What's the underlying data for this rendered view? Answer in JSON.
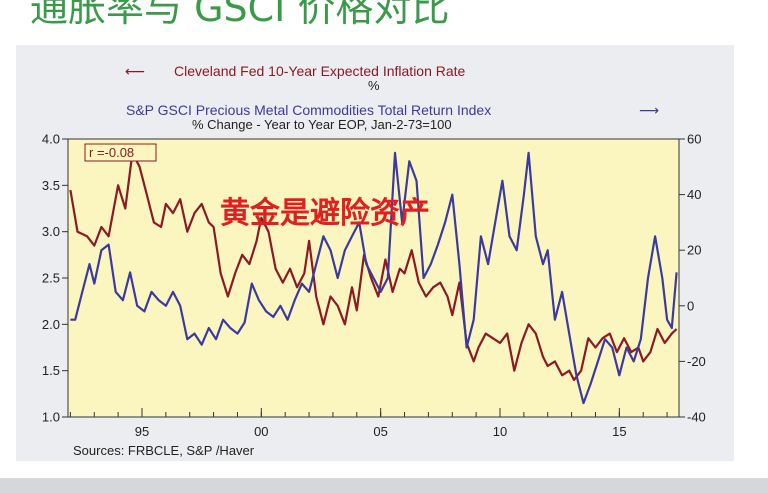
{
  "title": "通胀率与 GSCI 价格对比",
  "colors": {
    "inflation": "#8b1a24",
    "gsci": "#3c3aa0",
    "plot_bg": "#fbf6c0",
    "panel_bg": "#ecedf0",
    "title": "#3a9a4a",
    "annotation": "#e02020"
  },
  "chart_data": {
    "type": "line",
    "legend": {
      "inflation_label": "Cleveland Fed 10-Year Expected Inflation Rate",
      "inflation_unit": "%",
      "inflation_arrow": "⟵",
      "gsci_label": "S&P GSCI Precious Metal Commodities Total Return Index",
      "gsci_sub": "% Change - Year to Year     EOP, Jan-2-73=100",
      "gsci_arrow": "⟶"
    },
    "correlation": "r =-0.08",
    "annotation": "黄金是避险资产",
    "sources": "Sources:  FRBCLE, S&P /Haver",
    "x_ticks": [
      {
        "value": 1995,
        "label": "95"
      },
      {
        "value": 2000,
        "label": "00"
      },
      {
        "value": 2005,
        "label": "05"
      },
      {
        "value": 2010,
        "label": "10"
      },
      {
        "value": 2015,
        "label": "15"
      }
    ],
    "xlim": [
      1991.9,
      2017.5
    ],
    "left_axis": {
      "range": [
        1.0,
        4.0
      ],
      "ticks": [
        "1.0",
        "1.5",
        "2.0",
        "2.5",
        "3.0",
        "3.5",
        "4.0"
      ]
    },
    "right_axis": {
      "range": [
        -40,
        60
      ],
      "ticks": [
        "-40",
        "-20",
        "0",
        "20",
        "40",
        "60"
      ]
    },
    "series": [
      {
        "name": "Cleveland Fed 10-Year Expected Inflation Rate",
        "axis": "left",
        "points": [
          [
            1992.0,
            3.45
          ],
          [
            1992.3,
            3.0
          ],
          [
            1992.7,
            2.95
          ],
          [
            1993.0,
            2.85
          ],
          [
            1993.3,
            3.05
          ],
          [
            1993.6,
            2.95
          ],
          [
            1994.0,
            3.5
          ],
          [
            1994.3,
            3.25
          ],
          [
            1994.6,
            3.85
          ],
          [
            1994.9,
            3.7
          ],
          [
            1995.2,
            3.4
          ],
          [
            1995.5,
            3.1
          ],
          [
            1995.8,
            3.05
          ],
          [
            1996.0,
            3.3
          ],
          [
            1996.3,
            3.2
          ],
          [
            1996.6,
            3.35
          ],
          [
            1996.9,
            3.0
          ],
          [
            1997.2,
            3.2
          ],
          [
            1997.5,
            3.3
          ],
          [
            1997.8,
            3.1
          ],
          [
            1998.0,
            3.05
          ],
          [
            1998.3,
            2.55
          ],
          [
            1998.6,
            2.3
          ],
          [
            1998.9,
            2.55
          ],
          [
            1999.2,
            2.75
          ],
          [
            1999.5,
            2.65
          ],
          [
            1999.8,
            2.9
          ],
          [
            2000.0,
            3.15
          ],
          [
            2000.3,
            3.0
          ],
          [
            2000.6,
            2.6
          ],
          [
            2000.9,
            2.45
          ],
          [
            2001.2,
            2.6
          ],
          [
            2001.5,
            2.4
          ],
          [
            2001.8,
            2.55
          ],
          [
            2002.0,
            2.9
          ],
          [
            2002.3,
            2.3
          ],
          [
            2002.6,
            2.0
          ],
          [
            2002.9,
            2.3
          ],
          [
            2003.2,
            2.2
          ],
          [
            2003.5,
            2.0
          ],
          [
            2003.8,
            2.4
          ],
          [
            2004.0,
            2.15
          ],
          [
            2004.3,
            2.75
          ],
          [
            2004.6,
            2.5
          ],
          [
            2004.9,
            2.3
          ],
          [
            2005.2,
            2.7
          ],
          [
            2005.5,
            2.35
          ],
          [
            2005.8,
            2.6
          ],
          [
            2006.0,
            2.55
          ],
          [
            2006.3,
            2.8
          ],
          [
            2006.6,
            2.45
          ],
          [
            2006.9,
            2.3
          ],
          [
            2007.2,
            2.4
          ],
          [
            2007.5,
            2.45
          ],
          [
            2007.8,
            2.3
          ],
          [
            2008.0,
            2.1
          ],
          [
            2008.3,
            2.45
          ],
          [
            2008.6,
            1.8
          ],
          [
            2008.9,
            1.6
          ],
          [
            2009.1,
            1.75
          ],
          [
            2009.4,
            1.9
          ],
          [
            2009.7,
            1.85
          ],
          [
            2010.0,
            1.8
          ],
          [
            2010.3,
            1.9
          ],
          [
            2010.6,
            1.5
          ],
          [
            2010.9,
            1.8
          ],
          [
            2011.2,
            2.0
          ],
          [
            2011.5,
            1.9
          ],
          [
            2011.8,
            1.65
          ],
          [
            2012.0,
            1.55
          ],
          [
            2012.3,
            1.6
          ],
          [
            2012.6,
            1.45
          ],
          [
            2012.9,
            1.5
          ],
          [
            2013.1,
            1.4
          ],
          [
            2013.4,
            1.5
          ],
          [
            2013.7,
            1.85
          ],
          [
            2014.0,
            1.75
          ],
          [
            2014.3,
            1.85
          ],
          [
            2014.6,
            1.9
          ],
          [
            2014.9,
            1.7
          ],
          [
            2015.2,
            1.85
          ],
          [
            2015.5,
            1.7
          ],
          [
            2015.8,
            1.75
          ],
          [
            2016.0,
            1.6
          ],
          [
            2016.3,
            1.7
          ],
          [
            2016.6,
            1.95
          ],
          [
            2016.9,
            1.8
          ],
          [
            2017.2,
            1.9
          ],
          [
            2017.4,
            1.95
          ]
        ]
      },
      {
        "name": "S&P GSCI Precious Metal Commodities Total Return Index",
        "axis": "right",
        "points": [
          [
            1992.0,
            -5
          ],
          [
            1992.2,
            -5
          ],
          [
            1992.5,
            5
          ],
          [
            1992.8,
            15
          ],
          [
            1993.0,
            8
          ],
          [
            1993.3,
            20
          ],
          [
            1993.6,
            22
          ],
          [
            1993.9,
            5
          ],
          [
            1994.2,
            2
          ],
          [
            1994.5,
            12
          ],
          [
            1994.8,
            0
          ],
          [
            1995.1,
            -2
          ],
          [
            1995.4,
            5
          ],
          [
            1995.7,
            2
          ],
          [
            1996.0,
            0
          ],
          [
            1996.3,
            5
          ],
          [
            1996.6,
            0
          ],
          [
            1996.9,
            -12
          ],
          [
            1997.2,
            -10
          ],
          [
            1997.5,
            -14
          ],
          [
            1997.8,
            -8
          ],
          [
            1998.1,
            -12
          ],
          [
            1998.4,
            -5
          ],
          [
            1998.7,
            -8
          ],
          [
            1999.0,
            -10
          ],
          [
            1999.3,
            -6
          ],
          [
            1999.6,
            8
          ],
          [
            1999.9,
            2
          ],
          [
            2000.2,
            -2
          ],
          [
            2000.5,
            -4
          ],
          [
            2000.8,
            0
          ],
          [
            2001.1,
            -5
          ],
          [
            2001.4,
            2
          ],
          [
            2001.7,
            8
          ],
          [
            2002.0,
            5
          ],
          [
            2002.3,
            15
          ],
          [
            2002.6,
            25
          ],
          [
            2002.9,
            20
          ],
          [
            2003.2,
            10
          ],
          [
            2003.5,
            20
          ],
          [
            2003.8,
            25
          ],
          [
            2004.1,
            30
          ],
          [
            2004.4,
            15
          ],
          [
            2004.7,
            10
          ],
          [
            2005.0,
            5
          ],
          [
            2005.3,
            10
          ],
          [
            2005.6,
            55
          ],
          [
            2005.9,
            30
          ],
          [
            2006.2,
            52
          ],
          [
            2006.5,
            45
          ],
          [
            2006.8,
            10
          ],
          [
            2007.1,
            15
          ],
          [
            2007.4,
            22
          ],
          [
            2007.7,
            30
          ],
          [
            2008.0,
            40
          ],
          [
            2008.3,
            15
          ],
          [
            2008.6,
            -15
          ],
          [
            2008.9,
            -5
          ],
          [
            2009.2,
            25
          ],
          [
            2009.5,
            15
          ],
          [
            2009.8,
            30
          ],
          [
            2010.1,
            45
          ],
          [
            2010.4,
            25
          ],
          [
            2010.7,
            20
          ],
          [
            2011.0,
            40
          ],
          [
            2011.2,
            55
          ],
          [
            2011.5,
            25
          ],
          [
            2011.8,
            15
          ],
          [
            2012.0,
            20
          ],
          [
            2012.3,
            -5
          ],
          [
            2012.6,
            5
          ],
          [
            2012.9,
            -10
          ],
          [
            2013.2,
            -25
          ],
          [
            2013.5,
            -35
          ],
          [
            2013.8,
            -28
          ],
          [
            2014.1,
            -20
          ],
          [
            2014.4,
            -12
          ],
          [
            2014.7,
            -15
          ],
          [
            2015.0,
            -25
          ],
          [
            2015.3,
            -15
          ],
          [
            2015.6,
            -20
          ],
          [
            2015.9,
            -12
          ],
          [
            2016.2,
            10
          ],
          [
            2016.5,
            25
          ],
          [
            2016.8,
            10
          ],
          [
            2017.0,
            -5
          ],
          [
            2017.2,
            -8
          ],
          [
            2017.4,
            12
          ]
        ]
      }
    ]
  }
}
